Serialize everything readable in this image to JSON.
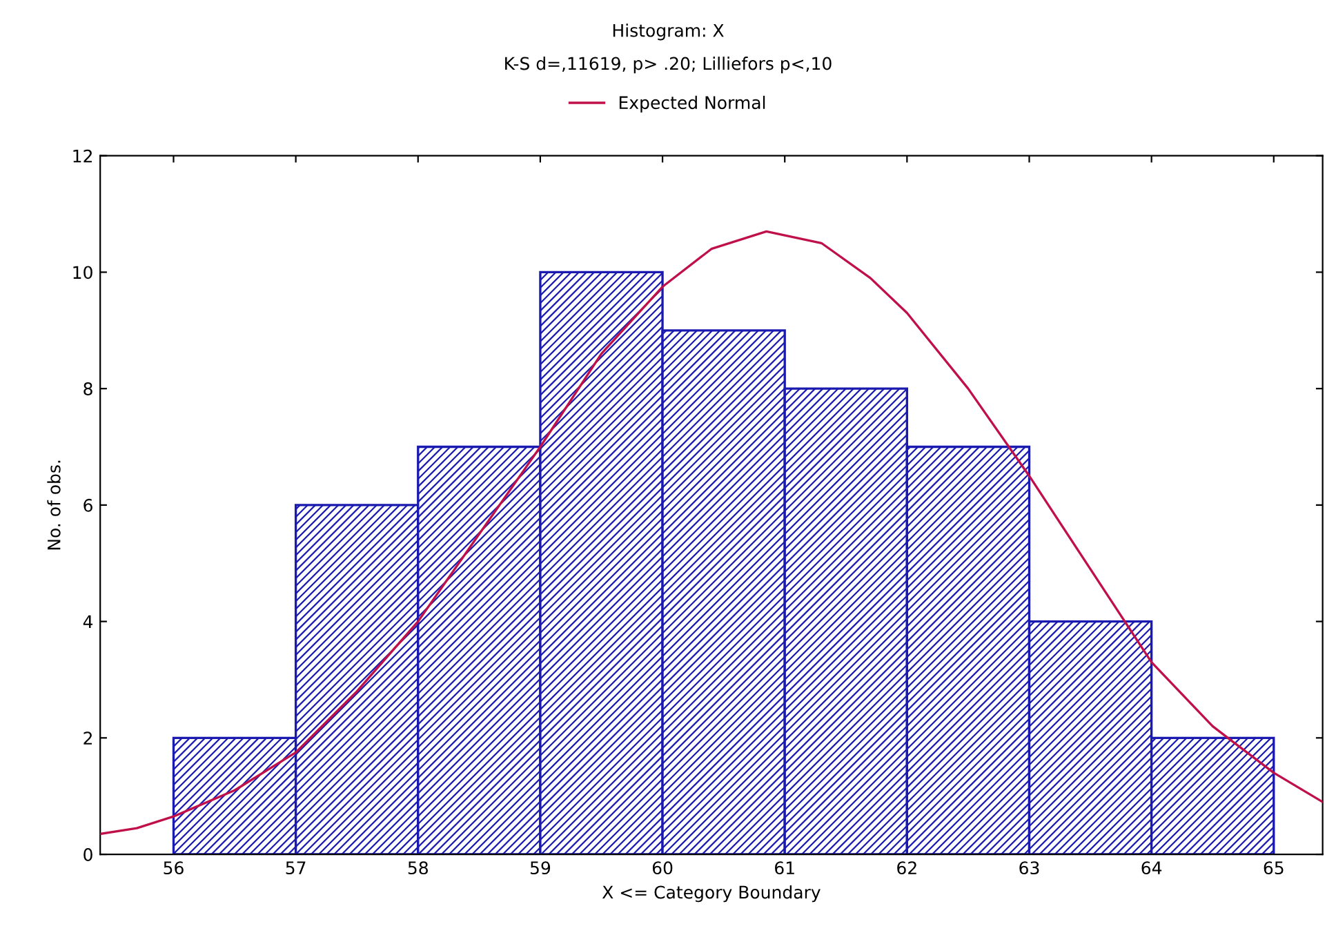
{
  "chart_data": [
    {
      "type": "histogram",
      "title": "Histogram: X",
      "subtitle": "K-S d=,11619, p> .20; Lilliefors p<,10",
      "xlabel": "X <= Category Boundary",
      "ylabel": "No. of obs.",
      "bins": [
        56,
        57,
        58,
        59,
        60,
        61,
        62,
        63,
        64,
        65
      ],
      "values": [
        2,
        6,
        7,
        10,
        9,
        8,
        7,
        4,
        2
      ],
      "color": "#1a1ab0",
      "series": [
        {
          "name": "Expected Normal",
          "type": "line",
          "color": "#c0104a",
          "x": [
            55.4,
            55.7,
            56,
            56.5,
            57,
            57.5,
            58,
            58.5,
            59,
            59.5,
            60,
            60.4,
            60.85,
            61.3,
            61.7,
            62,
            62.5,
            63,
            63.5,
            64,
            64.5,
            65,
            65.4
          ],
          "values": [
            0.35,
            0.45,
            0.65,
            1.1,
            1.75,
            2.8,
            4.0,
            5.5,
            7.0,
            8.6,
            9.75,
            10.4,
            10.7,
            10.5,
            9.9,
            9.3,
            8.0,
            6.5,
            4.9,
            3.3,
            2.2,
            1.4,
            0.9
          ]
        }
      ],
      "xlim": [
        55.4,
        65.4
      ],
      "ylim": [
        0,
        12
      ],
      "xticks": [
        56,
        57,
        58,
        59,
        60,
        61,
        62,
        63,
        64,
        65
      ],
      "yticks": [
        0,
        2,
        4,
        6,
        8,
        10,
        12
      ],
      "grid": false,
      "legend": "top"
    }
  ]
}
